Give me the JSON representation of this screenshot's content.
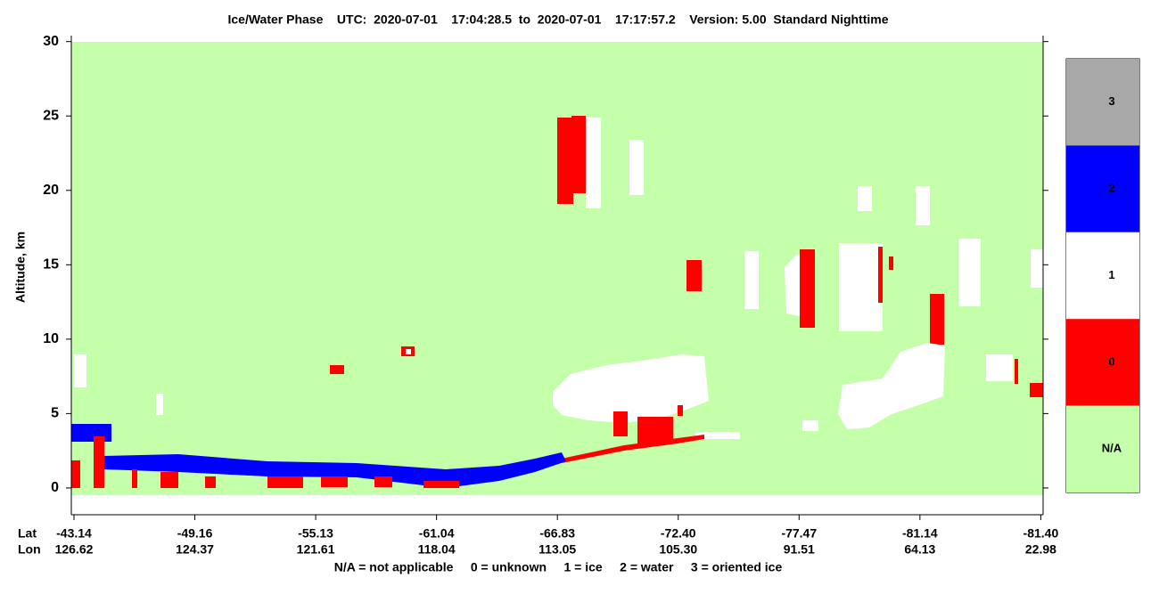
{
  "chart_data": {
    "type": "heatmap",
    "title": "Ice/Water Phase    UTC:  2020-07-01    17:04:28.5  to  2020-07-01    17:17:57.2    Version: 5.00  Standard Nighttime",
    "y_label": "Altitude, km",
    "ylim": [
      -1.8,
      30.4
    ],
    "yticks": [
      0,
      5,
      10,
      15,
      20,
      25,
      30
    ],
    "x_row_labels": [
      "Lat",
      "Lon"
    ],
    "lat": [
      "-43.14",
      "-49.16",
      "-55.13",
      "-61.04",
      "-66.83",
      "-72.40",
      "-77.47",
      "-81.14",
      "-81.40"
    ],
    "lon": [
      "126.62",
      "124.37",
      "121.61",
      "118.04",
      "113.05",
      "105.30",
      "91.51",
      "64.13",
      "22.98"
    ],
    "colorbar": {
      "labels": [
        "3",
        "2",
        "1",
        "0",
        "N/A"
      ],
      "colors": [
        "#a8a8a8",
        "#0000ff",
        "#ffffff",
        "#ff0000",
        "#c4ffaa"
      ]
    },
    "legend_note": "N/A = not applicable     0 = unknown     1 = ice     2 = water     3 = oriented ice"
  }
}
